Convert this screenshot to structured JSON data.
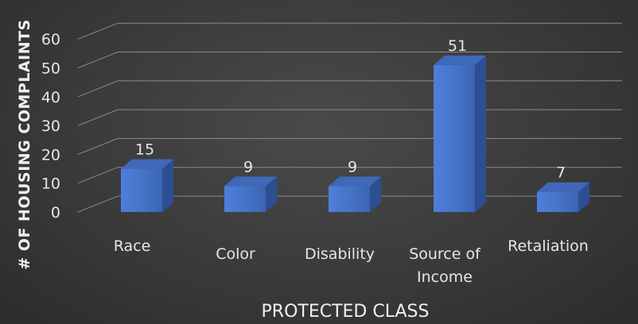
{
  "chart_data": {
    "type": "bar",
    "style": "3d-column",
    "categories": [
      "Race",
      "Color",
      "Disability",
      "Source of Income",
      "Retaliation"
    ],
    "values": [
      15,
      9,
      9,
      51,
      7
    ],
    "xlabel": "PROTECTED CLASS",
    "ylabel": "# OF HOUSING COMPLAINTS",
    "ylim": [
      0,
      60
    ],
    "yticks": [
      0,
      10,
      20,
      30,
      40,
      50,
      60
    ],
    "grid": true,
    "legend": "none",
    "bar_color": "#4472c4",
    "background": "#3a3a3a",
    "text_color": "#e6e6e6"
  }
}
